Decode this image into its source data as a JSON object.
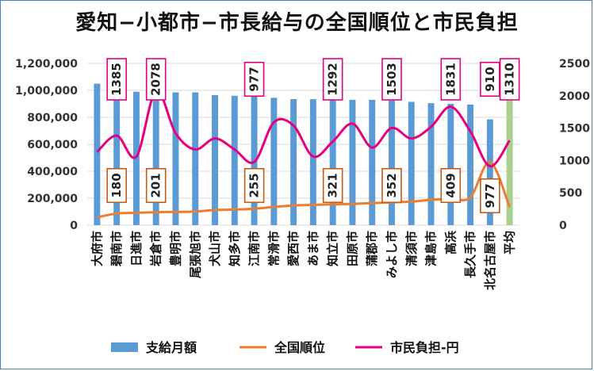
{
  "chart_data": {
    "type": "bar+line",
    "title": "愛知−小都市−市長給与の全国順位と市民負担",
    "categories": [
      "大府市",
      "碧南市",
      "日進市",
      "岩倉市",
      "豊明市",
      "尾張旭市",
      "犬山市",
      "知多市",
      "江南市",
      "常滑市",
      "愛西市",
      "あま市",
      "知立市",
      "田原市",
      "蒲郡市",
      "みよし市",
      "清須市",
      "津島市",
      "高浜",
      "長久手市",
      "北名古屋市",
      "平均"
    ],
    "left_axis": {
      "min": 0,
      "max": 1200000,
      "ticks": [
        "0",
        "200,000",
        "400,000",
        "600,000",
        "800,000",
        "1,000,000",
        "1,200,000"
      ]
    },
    "right_axis": {
      "min": 0,
      "max": 2500,
      "ticks": [
        "0",
        "500",
        "1000",
        "1500",
        "2000",
        "2500"
      ]
    },
    "series": [
      {
        "name": "支給月額",
        "axis": "left",
        "kind": "bar",
        "color": "#5b9bd5",
        "average_color": "#a9d18e",
        "values": [
          1050000,
          1000000,
          990000,
          990000,
          985000,
          985000,
          965000,
          960000,
          955000,
          945000,
          935000,
          935000,
          935000,
          930000,
          930000,
          925000,
          915000,
          905000,
          900000,
          895000,
          785000,
          945000
        ]
      },
      {
        "name": "全国順位",
        "axis": "right",
        "kind": "line",
        "color": "#ed7d31",
        "values": [
          120,
          180,
          190,
          201,
          205,
          210,
          235,
          240,
          255,
          280,
          305,
          312,
          321,
          330,
          340,
          352,
          365,
          390,
          409,
          430,
          977,
          280
        ]
      },
      {
        "name": "市民負担-円",
        "axis": "right",
        "kind": "line",
        "color": "#e6007e",
        "values": [
          1130,
          1385,
          1060,
          2078,
          1420,
          1170,
          1340,
          1170,
          977,
          1590,
          1540,
          1060,
          1292,
          1570,
          1200,
          1503,
          1340,
          1520,
          1831,
          1450,
          910,
          1310
        ]
      }
    ],
    "pink_labels": [
      {
        "index": 1,
        "text": "1385"
      },
      {
        "index": 3,
        "text": "2078"
      },
      {
        "index": 8,
        "text": "977"
      },
      {
        "index": 12,
        "text": "1292"
      },
      {
        "index": 15,
        "text": "1503"
      },
      {
        "index": 18,
        "text": "1831"
      },
      {
        "index": 20,
        "text": "910"
      },
      {
        "index": 21,
        "text": "1310"
      }
    ],
    "orange_labels": [
      {
        "index": 1,
        "text": "180"
      },
      {
        "index": 3,
        "text": "201"
      },
      {
        "index": 8,
        "text": "255"
      },
      {
        "index": 12,
        "text": "321"
      },
      {
        "index": 15,
        "text": "352"
      },
      {
        "index": 18,
        "text": "409"
      },
      {
        "index": 20,
        "text": "977"
      }
    ],
    "legend": [
      "支給月額",
      "全国順位",
      "市民負担-円"
    ],
    "legend_position": "bottom"
  }
}
